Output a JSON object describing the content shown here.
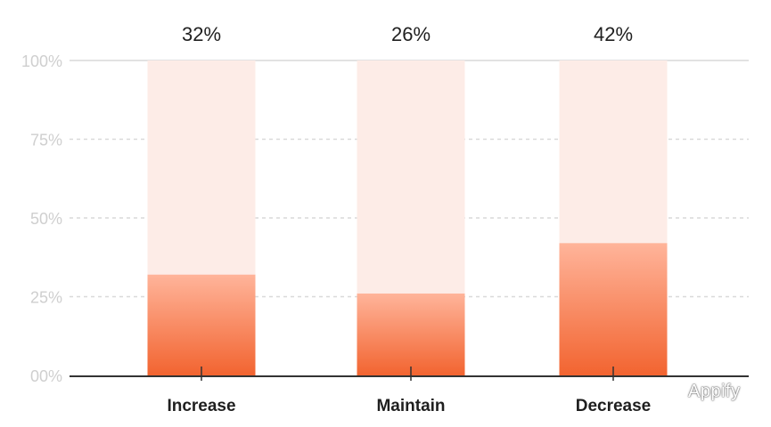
{
  "chart_data": {
    "type": "bar",
    "categories": [
      "Increase",
      "Maintain",
      "Decrease"
    ],
    "values": [
      32,
      26,
      42
    ],
    "value_labels": [
      "32%",
      "26%",
      "42%"
    ],
    "yticks": [
      0,
      25,
      50,
      75,
      100
    ],
    "ytick_labels": [
      "00%",
      "25%",
      "50%",
      "75%",
      "100%"
    ],
    "ylim": [
      0,
      100
    ],
    "title": "",
    "xlabel": "",
    "ylabel": "",
    "grid": true,
    "colors": {
      "bar_top": "#ffb49a",
      "bar_bottom": "#f26430",
      "track": "#fdece7",
      "axis": "#333333",
      "grid": "#d9d9d9",
      "tick_label": "#cfcfcf",
      "label": "#1f1f1f"
    }
  },
  "watermark": {
    "text": "Appify",
    "icon": "wechat-icon"
  }
}
